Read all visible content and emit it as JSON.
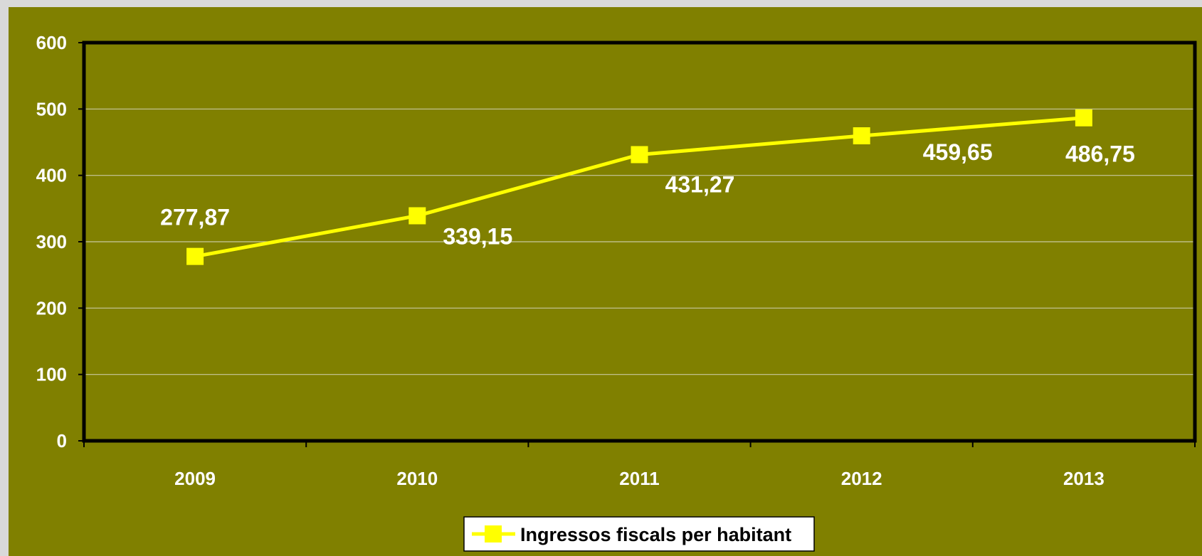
{
  "chart_data": {
    "type": "line",
    "title": "",
    "xlabel": "",
    "ylabel": "",
    "categories": [
      "2009",
      "2010",
      "2011",
      "2012",
      "2013"
    ],
    "series": [
      {
        "name": "Ingressos fiscals per habitant",
        "values": [
          277.87,
          339.15,
          431.27,
          459.65,
          486.75
        ],
        "labels": [
          "277,87",
          "339,15",
          "431,27",
          "459,65",
          "486,75"
        ],
        "color": "#ffff00",
        "marker": "square"
      }
    ],
    "ylim": [
      0,
      600
    ],
    "yticks": [
      0,
      100,
      200,
      300,
      400,
      500,
      600
    ],
    "ytick_labels": [
      "0",
      "100",
      "200",
      "300",
      "400",
      "500",
      "600"
    ],
    "grid": true,
    "legend": "bottom-center",
    "colors": {
      "background": "#808000",
      "plot_border": "#000000",
      "gridline": "#c8c8a0",
      "line": "#ffff00",
      "text": "#ffffff"
    }
  }
}
